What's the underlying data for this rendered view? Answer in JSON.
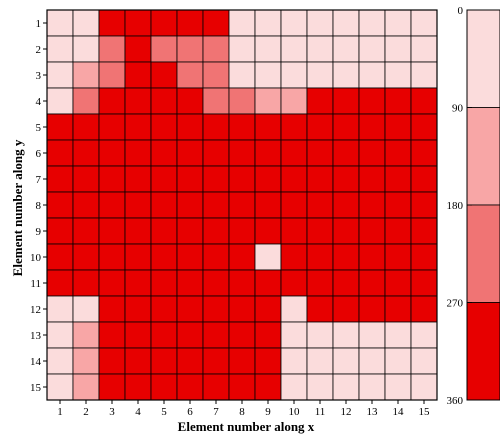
{
  "chart_data": {
    "type": "heatmap",
    "xlabel": "Element number along x",
    "ylabel": "Element number along y",
    "x_categories": [
      "1",
      "2",
      "3",
      "4",
      "5",
      "6",
      "7",
      "8",
      "9",
      "10",
      "11",
      "12",
      "13",
      "14",
      "15"
    ],
    "y_categories": [
      "1",
      "2",
      "3",
      "4",
      "5",
      "6",
      "7",
      "8",
      "9",
      "10",
      "11",
      "12",
      "13",
      "14",
      "15"
    ],
    "colorbar": {
      "range": [
        0,
        360
      ],
      "ticks": [
        "0",
        "90",
        "180",
        "270",
        "360"
      ],
      "levels": [
        0,
        90,
        180,
        270,
        360
      ],
      "colors": [
        "#fbdcdc",
        "#f8a6a6",
        "#f07474",
        "#e70000"
      ],
      "reversed": true
    },
    "values": [
      [
        40,
        35,
        300,
        320,
        300,
        300,
        300,
        60,
        40,
        20,
        20,
        20,
        20,
        20,
        20
      ],
      [
        40,
        30,
        250,
        320,
        260,
        200,
        200,
        60,
        40,
        20,
        20,
        20,
        20,
        20,
        20
      ],
      [
        40,
        100,
        200,
        320,
        320,
        200,
        200,
        60,
        60,
        20,
        20,
        20,
        20,
        20,
        20
      ],
      [
        80,
        250,
        320,
        320,
        320,
        310,
        250,
        200,
        120,
        100,
        320,
        320,
        320,
        320,
        320
      ],
      [
        320,
        320,
        320,
        320,
        320,
        320,
        320,
        320,
        320,
        320,
        320,
        320,
        320,
        320,
        320
      ],
      [
        320,
        320,
        320,
        320,
        320,
        320,
        320,
        320,
        320,
        320,
        320,
        320,
        320,
        320,
        320
      ],
      [
        320,
        320,
        320,
        320,
        320,
        320,
        320,
        320,
        320,
        320,
        320,
        320,
        320,
        320,
        320
      ],
      [
        320,
        320,
        320,
        320,
        320,
        320,
        320,
        320,
        320,
        320,
        320,
        320,
        320,
        320,
        320
      ],
      [
        320,
        320,
        320,
        320,
        320,
        320,
        320,
        320,
        320,
        320,
        320,
        320,
        320,
        320,
        320
      ],
      [
        320,
        320,
        320,
        320,
        320,
        320,
        320,
        320,
        40,
        320,
        320,
        320,
        320,
        320,
        320
      ],
      [
        320,
        320,
        320,
        320,
        320,
        320,
        320,
        320,
        320,
        320,
        320,
        320,
        320,
        320,
        320
      ],
      [
        30,
        80,
        320,
        320,
        320,
        320,
        320,
        320,
        320,
        60,
        320,
        320,
        320,
        320,
        320
      ],
      [
        40,
        100,
        320,
        320,
        320,
        320,
        320,
        320,
        320,
        60,
        40,
        20,
        20,
        20,
        20
      ],
      [
        40,
        100,
        320,
        320,
        320,
        320,
        320,
        320,
        320,
        60,
        40,
        20,
        20,
        20,
        20
      ],
      [
        40,
        100,
        320,
        320,
        320,
        320,
        320,
        320,
        320,
        60,
        40,
        20,
        20,
        20,
        20
      ]
    ]
  }
}
